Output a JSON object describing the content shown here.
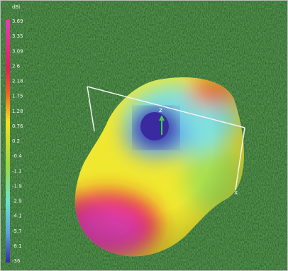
{
  "colorbar": {
    "unit": "dBi",
    "labels": [
      "3.69",
      "3.35",
      "3.09",
      "2.6",
      "2.18",
      "1.75",
      "1.28",
      "0.76",
      "0.2",
      "-0.4",
      "-1.1",
      "-1.9",
      "-2.9",
      "-4.1",
      "-5.7",
      "-8.1",
      "-36"
    ]
  },
  "axes": {
    "z": "z",
    "x": "x"
  }
}
